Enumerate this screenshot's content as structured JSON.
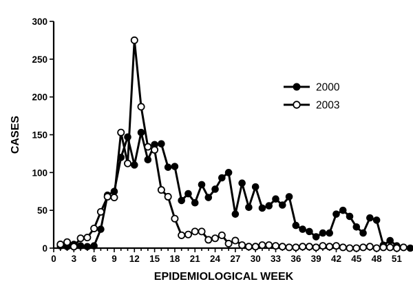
{
  "chart_data": {
    "type": "line",
    "xlabel": "EPIDEMIOLOGICAL WEEK",
    "ylabel": "CASES",
    "xlim": [
      0,
      53
    ],
    "ylim": [
      0,
      300
    ],
    "xticks": [
      0,
      3,
      6,
      9,
      12,
      15,
      18,
      21,
      24,
      27,
      30,
      33,
      36,
      39,
      42,
      45,
      48,
      51
    ],
    "yticks": [
      0,
      50,
      100,
      150,
      200,
      250,
      300
    ],
    "legend": "top-right",
    "series": [
      {
        "name": "2000",
        "marker": "filled-circle",
        "x": [
          1,
          2,
          3,
          4,
          5,
          6,
          7,
          8,
          9,
          10,
          11,
          12,
          13,
          14,
          15,
          16,
          17,
          18,
          19,
          20,
          21,
          22,
          23,
          24,
          25,
          26,
          27,
          28,
          29,
          30,
          31,
          32,
          33,
          34,
          35,
          36,
          37,
          38,
          39,
          40,
          41,
          42,
          43,
          44,
          45,
          46,
          47,
          48,
          49,
          50,
          51,
          52,
          53
        ],
        "values": [
          3,
          2,
          5,
          3,
          2,
          3,
          25,
          70,
          75,
          120,
          147,
          110,
          153,
          117,
          137,
          138,
          107,
          108,
          63,
          72,
          60,
          84,
          67,
          78,
          93,
          100,
          45,
          86,
          54,
          81,
          53,
          56,
          65,
          57,
          68,
          30,
          25,
          22,
          15,
          20,
          20,
          45,
          50,
          42,
          28,
          20,
          40,
          37,
          4,
          10,
          3,
          1,
          0
        ]
      },
      {
        "name": "2003",
        "marker": "open-circle",
        "x": [
          1,
          2,
          3,
          4,
          5,
          6,
          7,
          8,
          9,
          10,
          11,
          12,
          13,
          14,
          15,
          16,
          17,
          18,
          19,
          20,
          21,
          22,
          23,
          24,
          25,
          26,
          27,
          28,
          29,
          30,
          31,
          32,
          33,
          34,
          35,
          36,
          37,
          38,
          39,
          40,
          41,
          42,
          43,
          44,
          45,
          46,
          47,
          48,
          49,
          50,
          51,
          52
        ],
        "values": [
          5,
          8,
          2,
          13,
          14,
          26,
          48,
          68,
          67,
          153,
          112,
          275,
          187,
          134,
          130,
          77,
          68,
          39,
          17,
          18,
          22,
          22,
          11,
          13,
          17,
          6,
          10,
          4,
          2,
          2,
          4,
          4,
          3,
          2,
          1,
          1,
          2,
          2,
          1,
          3,
          2,
          3,
          1,
          0,
          0,
          1,
          2,
          0,
          1,
          1,
          0,
          1
        ]
      }
    ]
  }
}
